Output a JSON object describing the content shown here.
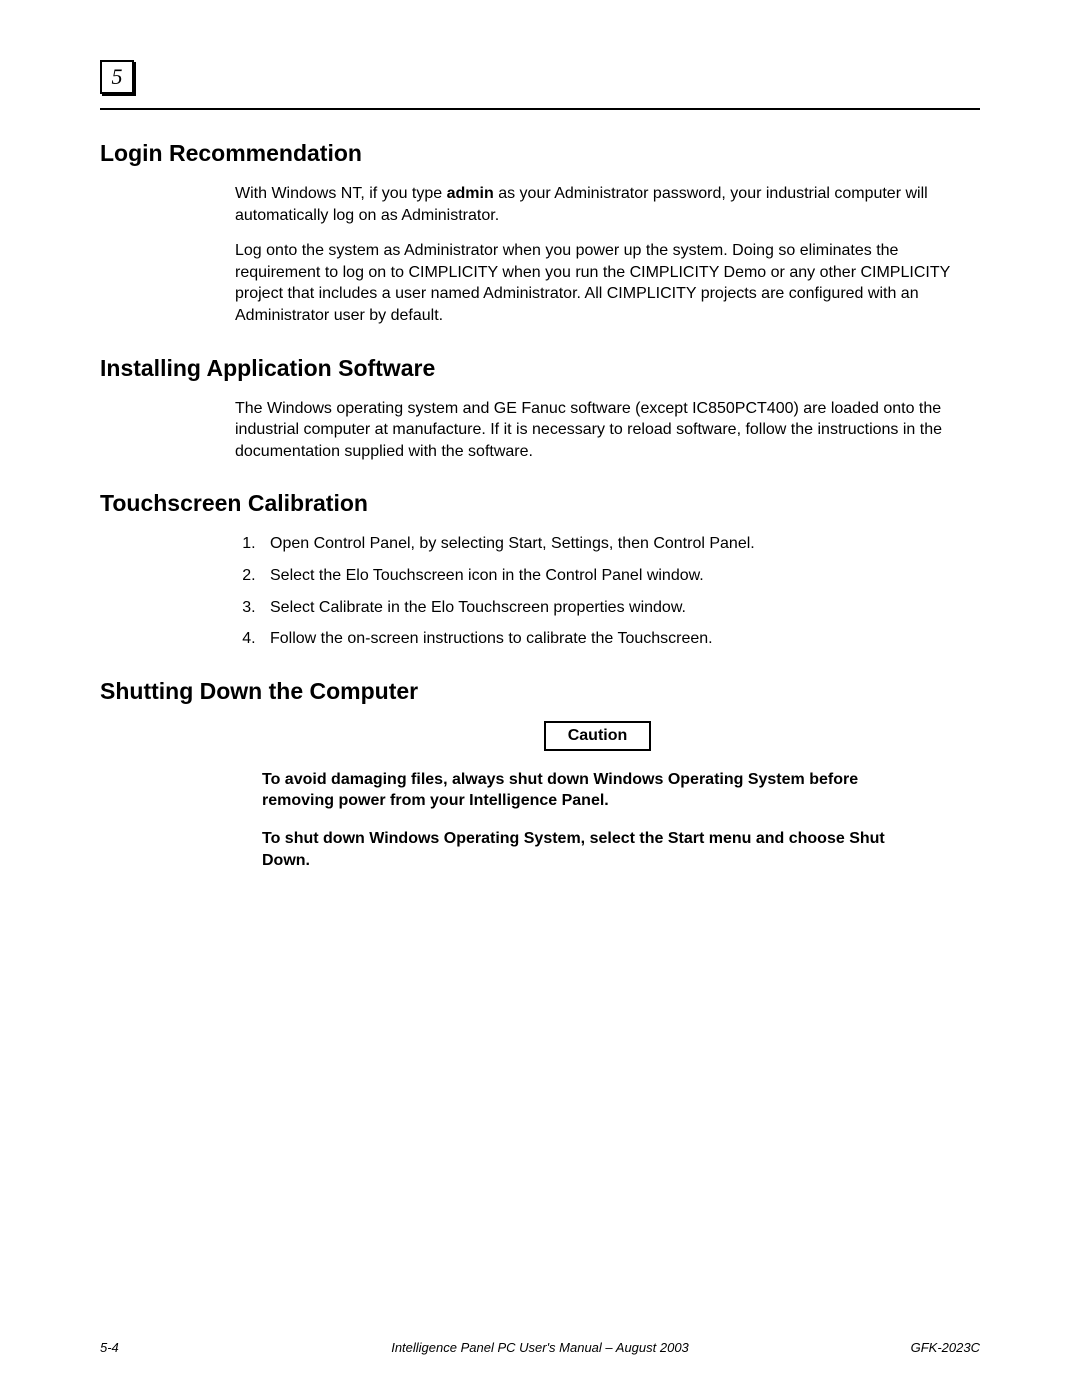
{
  "chapter_number": "5",
  "sections": {
    "login": {
      "heading": "Login Recommendation",
      "para1_pre": "With Windows NT, if you type ",
      "para1_bold": "admin",
      "para1_post": " as your Administrator password, your industrial computer will automatically log on as Administrator.",
      "para2": "Log onto the system as Administrator when you power up the system. Doing so eliminates the requirement to log on to CIMPLICITY when you run the CIMPLICITY Demo or any other CIMPLICITY project that includes a user named Administrator. All CIMPLICITY projects are configured with an Administrator user by default."
    },
    "installing": {
      "heading": "Installing Application Software",
      "para1": "The Windows operating system and GE Fanuc software (except IC850PCT400) are loaded onto the industrial computer at manufacture. If it is necessary to reload software, follow the instructions in the documentation supplied with the software."
    },
    "touchscreen": {
      "heading": "Touchscreen Calibration",
      "steps": [
        "Open Control Panel, by selecting Start, Settings, then Control Panel.",
        "Select the Elo Touchscreen icon in the Control Panel window.",
        "Select Calibrate in the Elo Touchscreen properties window.",
        "Follow the on-screen instructions to calibrate the Touchscreen."
      ]
    },
    "shutdown": {
      "heading": "Shutting Down the Computer",
      "caution_label": "Caution",
      "caution_para1": "To avoid damaging files, always shut down Windows Operating System  before removing power from your Intelligence Panel.",
      "caution_para2": "To shut down Windows Operating System, select the Start menu and choose Shut Down."
    }
  },
  "footer": {
    "page": "5-4",
    "title": "Intelligence Panel PC User's Manual – August 2003",
    "doc_id": "GFK-2023C"
  }
}
